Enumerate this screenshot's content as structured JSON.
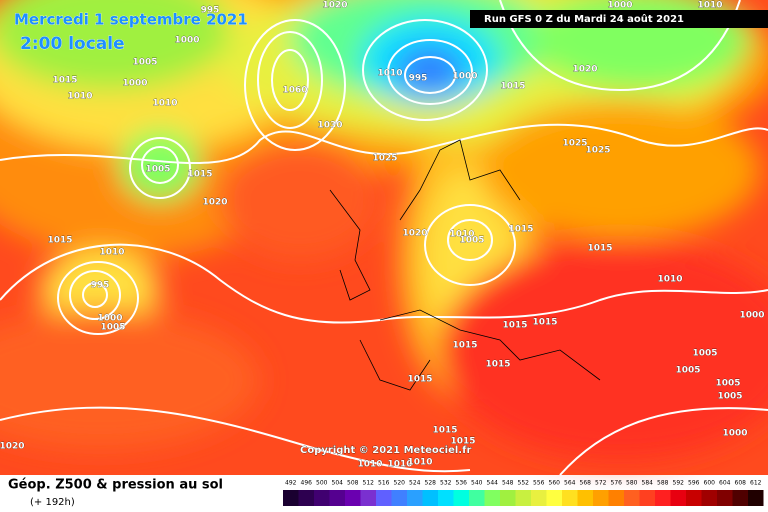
{
  "header": {
    "date": "Mercredi 1 septembre 2021",
    "time": "2:00 locale",
    "run": "Run GFS 0 Z du Mardi 24 août 2021"
  },
  "copyright": "Copyright © 2021 Meteociel.fr",
  "footer": {
    "title": "Géop. Z500 & pression au sol",
    "lead": "(+ 192h)"
  },
  "scale": {
    "values": [
      492,
      496,
      500,
      504,
      508,
      512,
      516,
      520,
      524,
      528,
      532,
      536,
      540,
      544,
      548,
      552,
      556,
      560,
      564,
      568,
      572,
      576,
      580,
      584,
      588,
      592,
      596,
      600,
      604,
      608,
      612
    ],
    "colors": [
      "#1a0030",
      "#2d0050",
      "#400070",
      "#550090",
      "#6a00b0",
      "#7a30d0",
      "#6060ff",
      "#4080ff",
      "#2aa0ff",
      "#00c0ff",
      "#00e0ff",
      "#00ffe0",
      "#40ffa0",
      "#80ff60",
      "#a0f040",
      "#c8f040",
      "#e8f040",
      "#ffff40",
      "#ffe020",
      "#ffc000",
      "#ffa000",
      "#ff8000",
      "#ff6020",
      "#ff4020",
      "#ff2020",
      "#e80010",
      "#c80000",
      "#a00000",
      "#800000",
      "#500000",
      "#200000"
    ]
  },
  "isobar_labels": [
    995,
    1020,
    1010,
    1000,
    1005,
    1000,
    1015,
    1010,
    1010,
    1060,
    1030,
    1010,
    995,
    1000,
    1015,
    1020,
    1000,
    1025,
    1025,
    1025,
    1005,
    1015,
    1020,
    1015,
    1010,
    995,
    1000,
    1005,
    1020,
    1010,
    1005,
    1015,
    1015,
    1010,
    1000,
    1015,
    1015,
    1015,
    1015,
    1005,
    1005,
    1005,
    1005,
    1015,
    1015,
    1015,
    1000,
    1020,
    1010,
    1010,
    1010
  ]
}
